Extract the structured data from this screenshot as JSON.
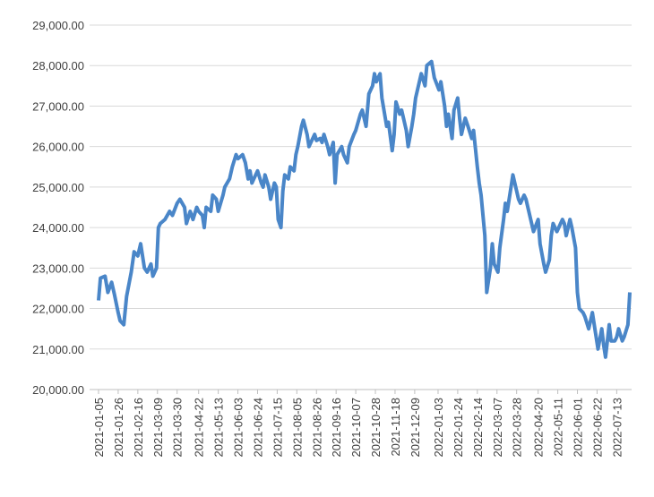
{
  "chart_data": {
    "type": "line",
    "x": [
      "2021-01-05",
      "2021-01-07",
      "2021-01-12",
      "2021-01-15",
      "2021-01-19",
      "2021-01-22",
      "2021-01-26",
      "2021-01-28",
      "2021-02-01",
      "2021-02-04",
      "2021-02-09",
      "2021-02-12",
      "2021-02-16",
      "2021-02-19",
      "2021-02-23",
      "2021-02-26",
      "2021-03-02",
      "2021-03-04",
      "2021-03-08",
      "2021-03-10",
      "2021-03-12",
      "2021-03-17",
      "2021-03-22",
      "2021-03-25",
      "2021-03-30",
      "2021-04-02",
      "2021-04-07",
      "2021-04-09",
      "2021-04-13",
      "2021-04-16",
      "2021-04-20",
      "2021-04-22",
      "2021-04-26",
      "2021-04-28",
      "2021-04-30",
      "2021-05-05",
      "2021-05-07",
      "2021-05-11",
      "2021-05-13",
      "2021-05-18",
      "2021-05-20",
      "2021-05-25",
      "2021-05-28",
      "2021-06-01",
      "2021-06-03",
      "2021-06-08",
      "2021-06-11",
      "2021-06-14",
      "2021-06-16",
      "2021-06-18",
      "2021-06-22",
      "2021-06-24",
      "2021-06-28",
      "2021-06-30",
      "2021-07-02",
      "2021-07-06",
      "2021-07-08",
      "2021-07-12",
      "2021-07-14",
      "2021-07-16",
      "2021-07-19",
      "2021-07-21",
      "2021-07-23",
      "2021-07-27",
      "2021-07-29",
      "2021-08-02",
      "2021-08-04",
      "2021-08-06",
      "2021-08-10",
      "2021-08-12",
      "2021-08-16",
      "2021-08-18",
      "2021-08-20",
      "2021-08-24",
      "2021-08-26",
      "2021-08-30",
      "2021-09-01",
      "2021-09-03",
      "2021-09-07",
      "2021-09-09",
      "2021-09-13",
      "2021-09-15",
      "2021-09-17",
      "2021-09-22",
      "2021-09-24",
      "2021-09-28",
      "2021-09-30",
      "2021-10-05",
      "2021-10-07",
      "2021-10-12",
      "2021-10-14",
      "2021-10-18",
      "2021-10-21",
      "2021-10-25",
      "2021-10-27",
      "2021-10-29",
      "2021-11-02",
      "2021-11-04",
      "2021-11-09",
      "2021-11-11",
      "2021-11-15",
      "2021-11-17",
      "2021-11-19",
      "2021-11-23",
      "2021-11-25",
      "2021-11-30",
      "2021-12-02",
      "2021-12-06",
      "2021-12-08",
      "2021-12-10",
      "2021-12-14",
      "2021-12-16",
      "2021-12-20",
      "2021-12-22",
      "2021-12-27",
      "2021-12-30",
      "2022-01-04",
      "2022-01-06",
      "2022-01-10",
      "2022-01-12",
      "2022-01-14",
      "2022-01-18",
      "2022-01-20",
      "2022-01-24",
      "2022-01-26",
      "2022-01-28",
      "2022-02-01",
      "2022-02-04",
      "2022-02-08",
      "2022-02-10",
      "2022-02-14",
      "2022-02-16",
      "2022-02-18",
      "2022-02-22",
      "2022-02-24",
      "2022-02-28",
      "2022-03-02",
      "2022-03-04",
      "2022-03-08",
      "2022-03-10",
      "2022-03-14",
      "2022-03-16",
      "2022-03-18",
      "2022-03-22",
      "2022-03-24",
      "2022-03-28",
      "2022-03-30",
      "2022-04-01",
      "2022-04-05",
      "2022-04-07",
      "2022-04-11",
      "2022-04-13",
      "2022-04-15",
      "2022-04-20",
      "2022-04-22",
      "2022-04-26",
      "2022-04-28",
      "2022-05-02",
      "2022-05-04",
      "2022-05-06",
      "2022-05-10",
      "2022-05-12",
      "2022-05-16",
      "2022-05-18",
      "2022-05-20",
      "2022-05-24",
      "2022-05-26",
      "2022-05-30",
      "2022-06-01",
      "2022-06-03",
      "2022-06-07",
      "2022-06-09",
      "2022-06-13",
      "2022-06-15",
      "2022-06-17",
      "2022-06-21",
      "2022-06-23",
      "2022-06-27",
      "2022-06-29",
      "2022-07-01",
      "2022-07-05",
      "2022-07-07",
      "2022-07-11",
      "2022-07-13",
      "2022-07-15",
      "2022-07-19",
      "2022-07-21",
      "2022-07-25",
      "2022-07-27"
    ],
    "series": [
      {
        "color": "#4a86c8",
        "values": [
          22200,
          22750,
          22800,
          22400,
          22650,
          22350,
          21900,
          21700,
          21600,
          22300,
          22900,
          23400,
          23300,
          23600,
          23000,
          22900,
          23100,
          22800,
          23000,
          24000,
          24100,
          24200,
          24400,
          24300,
          24600,
          24700,
          24500,
          24100,
          24400,
          24200,
          24500,
          24400,
          24300,
          24000,
          24500,
          24400,
          24800,
          24700,
          24400,
          24800,
          25000,
          25200,
          25500,
          25800,
          25700,
          25800,
          25600,
          25200,
          25400,
          25100,
          25300,
          25400,
          25100,
          25000,
          25300,
          25000,
          24700,
          25100,
          25000,
          24200,
          24000,
          24900,
          25300,
          25200,
          25500,
          25400,
          25800,
          26000,
          26500,
          26650,
          26300,
          26000,
          26100,
          26300,
          26150,
          26200,
          26100,
          26300,
          26000,
          25800,
          26100,
          25100,
          25800,
          26000,
          25800,
          25600,
          26000,
          26300,
          26400,
          26800,
          26900,
          26500,
          27300,
          27500,
          27800,
          27600,
          27800,
          27200,
          26500,
          26600,
          25900,
          26300,
          27100,
          26800,
          26900,
          26400,
          26000,
          26500,
          26800,
          27200,
          27600,
          27800,
          27500,
          28000,
          28100,
          27700,
          27400,
          27600,
          27000,
          26500,
          26800,
          26200,
          26900,
          27200,
          26700,
          26300,
          26700,
          26500,
          26200,
          26400,
          25500,
          25100,
          24800,
          23800,
          22400,
          23000,
          23600,
          23100,
          22900,
          23500,
          24200,
          24600,
          24400,
          25000,
          25300,
          24900,
          24700,
          24600,
          24800,
          24700,
          24300,
          24100,
          23900,
          24200,
          23600,
          23100,
          22900,
          23200,
          23800,
          24100,
          23900,
          24000,
          24200,
          24100,
          23800,
          24200,
          24000,
          23500,
          22400,
          22000,
          21900,
          21800,
          21500,
          21700,
          21900,
          21300,
          21000,
          21500,
          21100,
          20800,
          21600,
          21200,
          21200,
          21300,
          21500,
          21200,
          21300,
          21600,
          22400
        ]
      }
    ],
    "xlim": [
      "2021-01-05",
      "2022-07-27"
    ],
    "xticks": [
      "2021-01-05",
      "2021-01-26",
      "2021-02-16",
      "2021-03-09",
      "2021-03-30",
      "2021-04-22",
      "2021-05-13",
      "2021-06-03",
      "2021-06-24",
      "2021-07-15",
      "2021-08-05",
      "2021-08-26",
      "2021-09-16",
      "2021-10-07",
      "2021-10-28",
      "2021-11-18",
      "2021-12-09",
      "2022-01-03",
      "2022-01-24",
      "2022-02-14",
      "2022-03-07",
      "2022-03-28",
      "2022-04-20",
      "2022-05-11",
      "2022-06-01",
      "2022-06-22",
      "2022-07-13"
    ],
    "ylim": [
      20000,
      29000
    ],
    "yticks": [
      {
        "value": 20000,
        "label": "20,000.00"
      },
      {
        "value": 21000,
        "label": "21,000.00"
      },
      {
        "value": 22000,
        "label": "22,000.00"
      },
      {
        "value": 23000,
        "label": "23,000.00"
      },
      {
        "value": 24000,
        "label": "24,000.00"
      },
      {
        "value": 25000,
        "label": "25,000.00"
      },
      {
        "value": 26000,
        "label": "26,000.00"
      },
      {
        "value": 27000,
        "label": "27,000.00"
      },
      {
        "value": 28000,
        "label": "28,000.00"
      },
      {
        "value": 29000,
        "label": "29,000.00"
      }
    ],
    "grid": true
  }
}
